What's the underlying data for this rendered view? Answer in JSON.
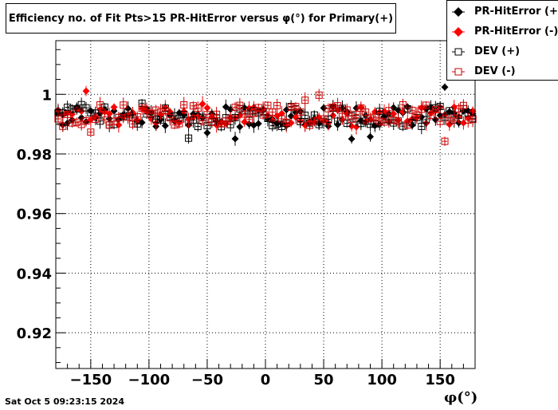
{
  "chart_data": {
    "type": "scatter",
    "title": "Efficiency no. of Fit Pts>15 PR-HitError versus φ(°) for Primary(+)",
    "xlabel": "φ(°)",
    "ylabel": "",
    "xlim": [
      -180,
      180
    ],
    "ylim": [
      0.908,
      1.018
    ],
    "x_ticks": [
      -150,
      -100,
      -50,
      0,
      50,
      100,
      150
    ],
    "x_tick_labels": [
      "−150",
      "−100",
      "−50",
      "0",
      "50",
      "100",
      "150"
    ],
    "y_ticks": [
      0.92,
      0.94,
      0.96,
      0.98,
      1.0
    ],
    "y_tick_labels": [
      "0.92",
      "0.94",
      "0.96",
      "0.98",
      "1"
    ],
    "grid": true,
    "legend_position": "top-right",
    "series": [
      {
        "name": "PR-HitError (+)",
        "color": "#000000",
        "marker": "filled-diamond",
        "seed": 11,
        "base": 0.9925
      },
      {
        "name": "PR-HitError (-)",
        "color": "#ff0000",
        "marker": "filled-diamond",
        "seed": 23,
        "base": 0.9925
      },
      {
        "name": "DEV (+)",
        "color": "#000000",
        "marker": "open-square",
        "seed": 37,
        "base": 0.9925
      },
      {
        "name": "DEV (-)",
        "color": "#cc0000",
        "marker": "open-square",
        "seed": 53,
        "base": 0.993
      }
    ],
    "bin_count": 90
  },
  "footer": {
    "timestamp": "Sat Oct  5 09:23:15 2024"
  }
}
